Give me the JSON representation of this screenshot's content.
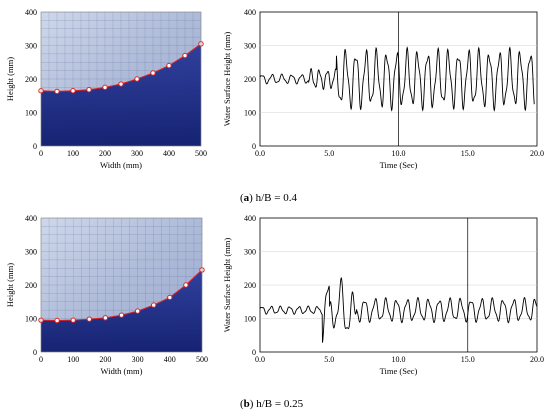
{
  "captions": [
    {
      "letter": "a",
      "text": "h/B = 0.4"
    },
    {
      "letter": "b",
      "text": "h/B = 0.25"
    }
  ],
  "chart_data": [
    {
      "type": "scatter",
      "subtitle": "photo-overlay",
      "xlabel": "Width (mm)",
      "ylabel": "Height (mm)",
      "xlim": [
        0,
        500
      ],
      "ylim": [
        0,
        400
      ],
      "xticks": [
        "0",
        "100",
        "200",
        "300",
        "400",
        "500"
      ],
      "yticks": [
        "0",
        "100",
        "200",
        "300",
        "400"
      ],
      "x": [
        0,
        50,
        100,
        150,
        200,
        250,
        300,
        350,
        400,
        450,
        500
      ],
      "y": [
        165,
        163,
        165,
        168,
        175,
        185,
        200,
        218,
        240,
        270,
        305
      ],
      "photo_colors": {
        "water": "#1a2a8a",
        "glass": "#b8c4de",
        "marker": "#e02020"
      }
    },
    {
      "type": "line",
      "xlabel": "Time (Sec)",
      "ylabel": "Water Surface Height (mm)",
      "xlim": [
        0,
        20
      ],
      "ylim": [
        0,
        400
      ],
      "xticks": [
        "0.0",
        "5.0",
        "10.0",
        "15.0",
        "20.0"
      ],
      "yticks": [
        "0",
        "100",
        "200",
        "300",
        "400"
      ],
      "vline": 10.0,
      "signal": {
        "base": 200,
        "x_start": 0.0,
        "x_end": 19.8,
        "segments": [
          {
            "until": 3.5,
            "amp": 12,
            "freq": 1.4
          },
          {
            "until": 5.5,
            "amp": 25,
            "freq": 1.7
          },
          {
            "until": 19.8,
            "amp": 75,
            "freq": 1.35
          }
        ]
      }
    },
    {
      "type": "scatter",
      "subtitle": "photo-overlay",
      "xlabel": "Width (mm)",
      "ylabel": "Height (mm)",
      "xlim": [
        0,
        500
      ],
      "ylim": [
        0,
        400
      ],
      "xticks": [
        "0",
        "100",
        "200",
        "300",
        "400",
        "500"
      ],
      "yticks": [
        "0",
        "100",
        "200",
        "300",
        "400"
      ],
      "x": [
        0,
        50,
        100,
        150,
        200,
        250,
        300,
        350,
        400,
        450,
        500
      ],
      "y": [
        95,
        94,
        95,
        98,
        102,
        110,
        122,
        140,
        163,
        200,
        245
      ],
      "photo_colors": {
        "water": "#1a2a8a",
        "glass": "#b8c4de",
        "marker": "#e02020"
      }
    },
    {
      "type": "line",
      "xlabel": "Time (Sec)",
      "ylabel": "Water Surface Height (mm)",
      "xlim": [
        0,
        20
      ],
      "ylim": [
        0,
        400
      ],
      "xticks": [
        "0.0",
        "5.0",
        "10.0",
        "15.0",
        "20.0"
      ],
      "yticks": [
        "0",
        "100",
        "200",
        "300",
        "400"
      ],
      "vline": 15.0,
      "signal": {
        "base": 125,
        "x_start": 0.0,
        "x_end": 20.0,
        "segments": [
          {
            "until": 4.5,
            "amp": 10,
            "freq": 1.5
          },
          {
            "until": 7.0,
            "amp": 80,
            "freq": 1.1
          },
          {
            "until": 20.0,
            "amp": 30,
            "freq": 1.3
          }
        ]
      }
    }
  ]
}
